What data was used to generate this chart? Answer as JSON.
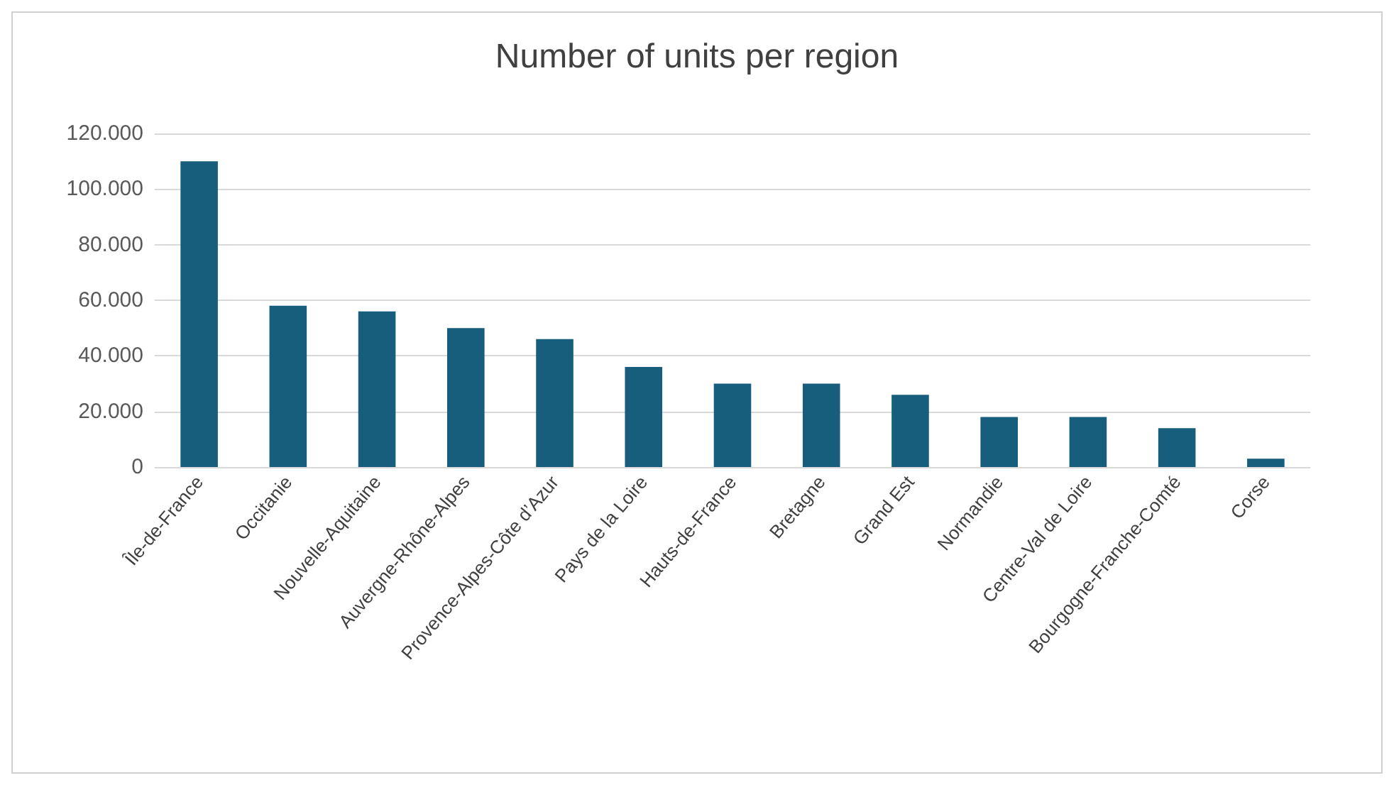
{
  "chart_data": {
    "type": "bar",
    "title": "Number of units per region",
    "categories": [
      "Île-de-France",
      "Occitanie",
      "Nouvelle-Aquitaine",
      "Auvergne-Rhône-Alpes",
      "Provence-Alpes-Côte d’Azur",
      "Pays de la Loire",
      "Hauts-de-France",
      "Bretagne",
      "Grand Est",
      "Normandie",
      "Centre-Val de Loire",
      "Bourgogne-Franche-Comté",
      "Corse"
    ],
    "values": [
      110000,
      58000,
      56000,
      50000,
      46000,
      36000,
      30000,
      30000,
      26000,
      18000,
      18000,
      14000,
      3000
    ],
    "color": "#175e7c",
    "ylim": [
      0,
      120000
    ],
    "yticks": [
      {
        "value": 0,
        "label": "0"
      },
      {
        "value": 20000,
        "label": "20.000"
      },
      {
        "value": 40000,
        "label": "40.000"
      },
      {
        "value": 60000,
        "label": "60.000"
      },
      {
        "value": 80000,
        "label": "80.000"
      },
      {
        "value": 100000,
        "label": "100.000"
      },
      {
        "value": 120000,
        "label": "120.000"
      }
    ],
    "grid": true
  }
}
